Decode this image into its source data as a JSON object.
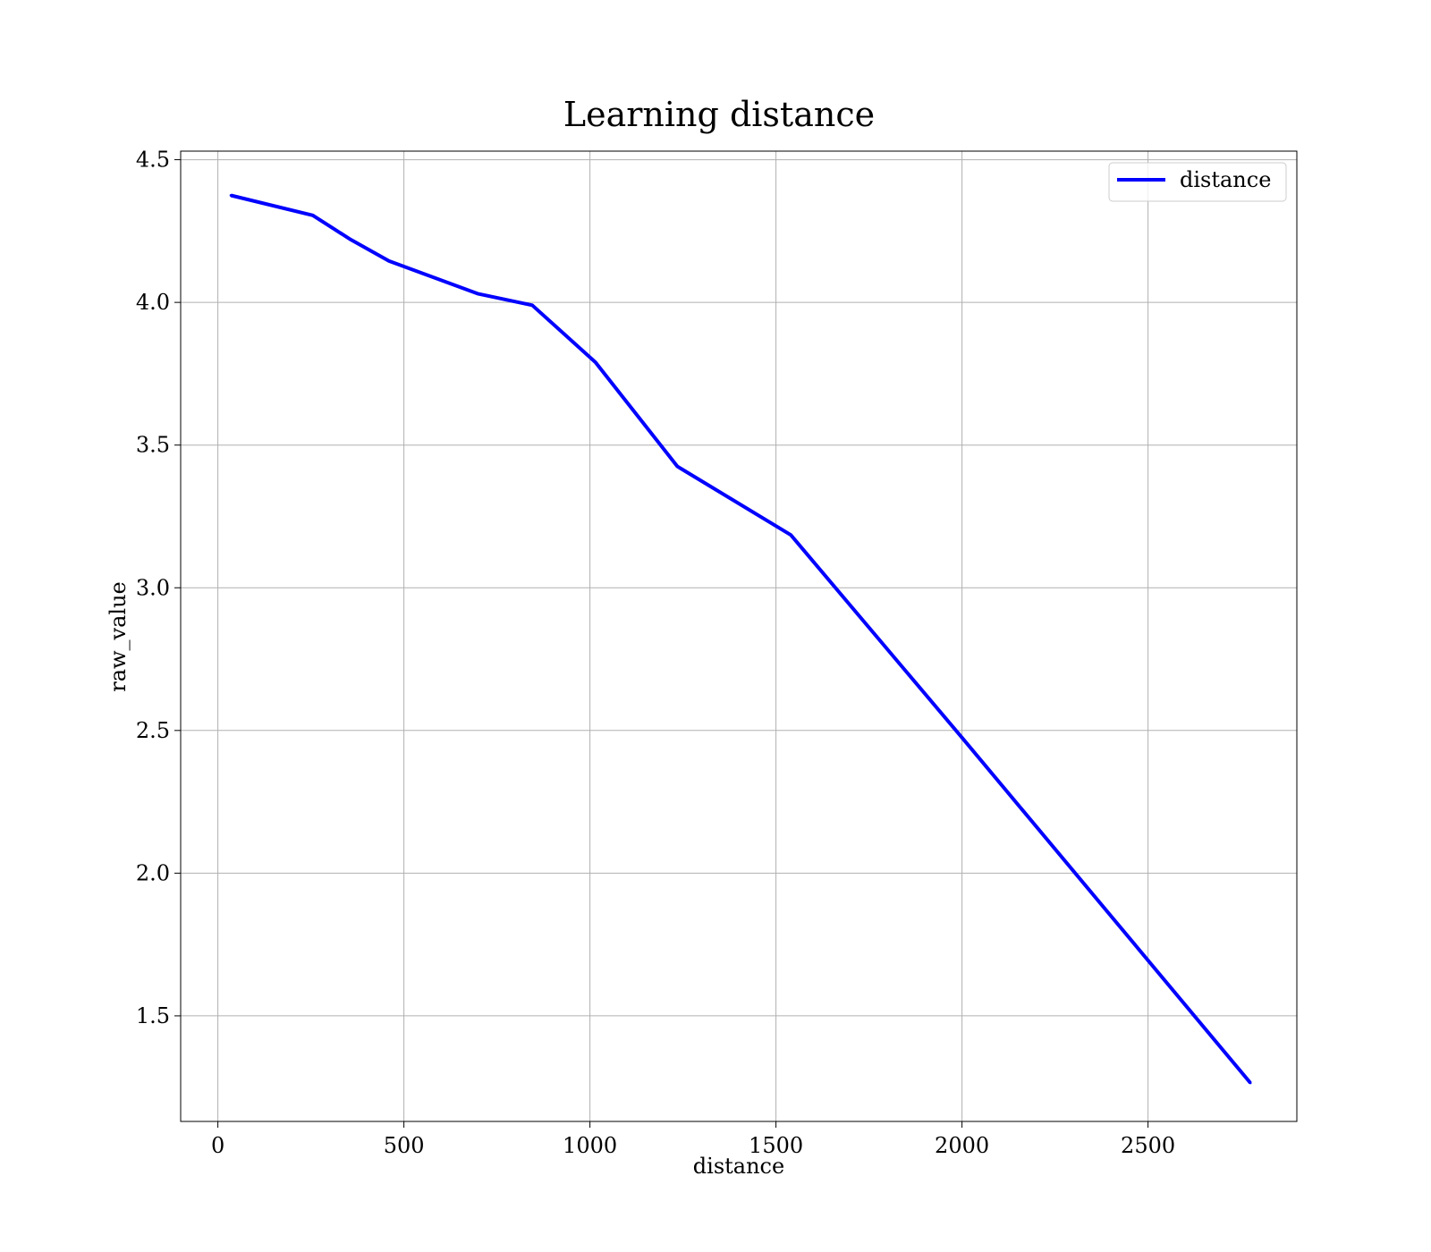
{
  "chart_data": {
    "type": "line",
    "title": "Learning distance",
    "xlabel": "distance",
    "ylabel": "raw_value",
    "xlim": [
      -100,
      2900
    ],
    "ylim": [
      1.13,
      4.53
    ],
    "xticks": [
      0,
      500,
      1000,
      1500,
      2000,
      2500
    ],
    "xtick_labels": [
      "0",
      "500",
      "1000",
      "1500",
      "2000",
      "2500"
    ],
    "yticks": [
      1.5,
      2.0,
      2.5,
      3.0,
      3.5,
      4.0,
      4.5
    ],
    "ytick_labels": [
      "1.5",
      "2.0",
      "2.5",
      "3.0",
      "3.5",
      "4.0",
      "4.5"
    ],
    "grid": true,
    "legend_position": "top-right",
    "series": [
      {
        "name": "distance",
        "color": "#0000ff",
        "x": [
          35,
          255,
          357,
          460,
          700,
          845,
          1015,
          1235,
          1540,
          2000,
          2775
        ],
        "y": [
          4.375,
          4.305,
          4.22,
          4.145,
          4.03,
          3.99,
          3.79,
          3.425,
          3.185,
          2.475,
          1.265
        ]
      }
    ]
  }
}
